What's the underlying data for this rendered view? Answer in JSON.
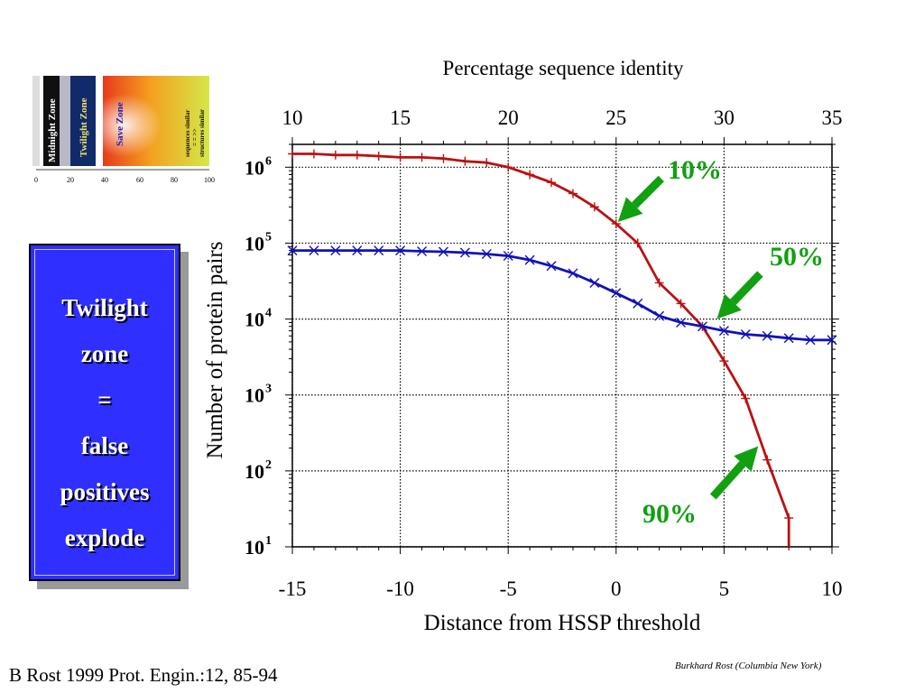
{
  "inset": {
    "zones": [
      "Midnight Zone",
      "Twilight Zone",
      "Save Zone"
    ],
    "note_lines": [
      "sequences similar",
      "= = >>",
      "structures similar"
    ],
    "ticks": [
      "0",
      "20",
      "40",
      "60",
      "80",
      "100"
    ]
  },
  "callout": {
    "lines": [
      "Twilight",
      "zone",
      "=",
      "false",
      "positives",
      "explode"
    ],
    "bg_color": "#2f2fff"
  },
  "citation": "B Rost 1999 Prot. Engin.:12, 85-94",
  "credit": "Burkhard Rost (Columbia New York)",
  "chart_data": {
    "type": "line",
    "xlabel": "Distance from HSSP threshold",
    "x2label": "Percentage sequence identity",
    "ylabel": "Number of protein pairs",
    "xlim": [
      -15,
      10
    ],
    "x_ticks": [
      "-15",
      "-10",
      "-5",
      "0",
      "5",
      "10"
    ],
    "x2lim": [
      10,
      35
    ],
    "x2_ticks": [
      "10",
      "15",
      "20",
      "25",
      "30",
      "35"
    ],
    "yscale": "log",
    "ylim": [
      10,
      2000000
    ],
    "y_ticks": [
      {
        "base": "10",
        "exp": "1",
        "value": 10
      },
      {
        "base": "10",
        "exp": "2",
        "value": 100
      },
      {
        "base": "10",
        "exp": "3",
        "value": 1000
      },
      {
        "base": "10",
        "exp": "4",
        "value": 10000
      },
      {
        "base": "10",
        "exp": "5",
        "value": 100000
      },
      {
        "base": "10",
        "exp": "6",
        "value": 1000000
      }
    ],
    "grid": true,
    "series": [
      {
        "color": "#bb1111",
        "marker": "plus",
        "x": [
          -15,
          -14,
          -13,
          -12,
          -11,
          -10,
          -9,
          -8,
          -7,
          -6,
          -5,
          -4,
          -3,
          -2,
          -1,
          0,
          1,
          2,
          3,
          4,
          5,
          6,
          7,
          8
        ],
        "y": [
          1500000,
          1500000,
          1450000,
          1450000,
          1400000,
          1350000,
          1350000,
          1300000,
          1200000,
          1150000,
          1000000,
          800000,
          630000,
          450000,
          300000,
          180000,
          100000,
          30000,
          16000,
          8000,
          2800,
          900,
          140,
          24
        ]
      },
      {
        "color": "#1111bb",
        "marker": "x",
        "x": [
          -15,
          -14,
          -13,
          -12,
          -11,
          -10,
          -9,
          -8,
          -7,
          -6,
          -5,
          -4,
          -3,
          -2,
          -1,
          0,
          1,
          2,
          3,
          4,
          5,
          6,
          7,
          8,
          9,
          10
        ],
        "y": [
          80000,
          80000,
          80000,
          80000,
          80000,
          80000,
          78000,
          77000,
          75000,
          72000,
          68000,
          60000,
          50000,
          40000,
          30000,
          22000,
          16000,
          11000,
          9000,
          8000,
          7000,
          6300,
          6000,
          5600,
          5300,
          5300
        ]
      }
    ],
    "annotations": [
      {
        "text": "10%",
        "color": "#10a010",
        "x": 0,
        "y": 180000
      },
      {
        "text": "50%",
        "color": "#10a010",
        "x": 4.5,
        "y": 8500
      },
      {
        "text": "90%",
        "color": "#10a010",
        "x": 6.5,
        "y": 200
      }
    ]
  }
}
